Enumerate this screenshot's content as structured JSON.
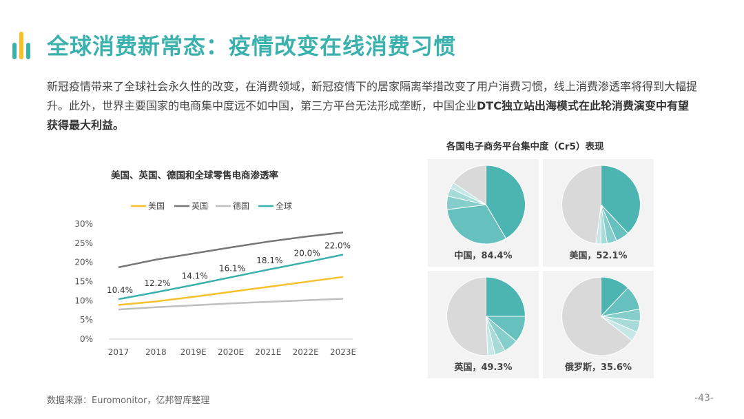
{
  "header": {
    "title": "全球消费新常态：疫情改变在线消费习惯"
  },
  "intro": {
    "text_normal": "新冠疫情带来了全球社会永久性的改变，在消费领域，新冠疫情下的居家隔离举措改变了用户消费习惯，线上消费渗透率将得到大幅提升。此外，世界主要国家的电商集中度远不如中国，第三方平台无法形成垄断，中国企业",
    "text_bold": "DTC独立站出海模式在此轮消费演变中有望获得最大利益。"
  },
  "footer": {
    "source": "数据来源：Euromonitor，亿邦智库整理",
    "page": "-43-"
  },
  "colors": {
    "accent": "#3bb1ae",
    "pie_gray": "#d9d9d9",
    "panel_bg": "#f3f3f3"
  },
  "chart_data": [
    {
      "type": "line",
      "title": "美国、英国、德国和全球零售电商渗透率",
      "categories": [
        "2017",
        "2018",
        "2019E",
        "2020E",
        "2021E",
        "2022E",
        "2023E"
      ],
      "ylim": [
        0,
        30
      ],
      "yticks": [
        "0%",
        "5%",
        "10%",
        "15%",
        "20%",
        "25%",
        "30%"
      ],
      "legend_position": "top",
      "grid": false,
      "series": [
        {
          "name": "美国",
          "color": "#f5c02a",
          "values": [
            8.9,
            9.8,
            11.0,
            12.3,
            13.6,
            14.9,
            16.2
          ]
        },
        {
          "name": "英国",
          "color": "#777777",
          "values": [
            18.7,
            20.7,
            22.3,
            23.9,
            25.4,
            26.7,
            27.8
          ]
        },
        {
          "name": "德国",
          "color": "#bfbfbf",
          "values": [
            7.7,
            8.3,
            8.8,
            9.3,
            9.7,
            10.1,
            10.5
          ]
        },
        {
          "name": "全球",
          "color": "#3bb1ae",
          "values": [
            10.4,
            12.2,
            14.1,
            16.1,
            18.1,
            20.0,
            22.0
          ],
          "labels": [
            "10.4%",
            "12.2%",
            "14.1%",
            "16.1%",
            "18.1%",
            "20.0%",
            "22.0%"
          ]
        }
      ]
    },
    {
      "type": "pie",
      "title": "各国电子商务平台集中度（Cr5）表现",
      "panels": [
        {
          "label": "中国，84.4%",
          "value": 84.4,
          "slices": [
            41.5,
            31.5,
            5.5,
            3.4,
            2.5
          ],
          "remainder": 15.6
        },
        {
          "label": "美国，52.1%",
          "value": 52.1,
          "slices": [
            38.0,
            5.5,
            4.0,
            2.6,
            2.0
          ],
          "remainder": 47.9
        },
        {
          "label": "英国，49.3%",
          "value": 49.3,
          "slices": [
            25.0,
            11.0,
            6.0,
            4.3,
            3.0
          ],
          "remainder": 50.7
        },
        {
          "label": "俄罗斯，35.6%",
          "value": 35.6,
          "slices": [
            12.0,
            10.0,
            5.0,
            4.6,
            4.0
          ],
          "remainder": 64.4
        }
      ]
    }
  ]
}
